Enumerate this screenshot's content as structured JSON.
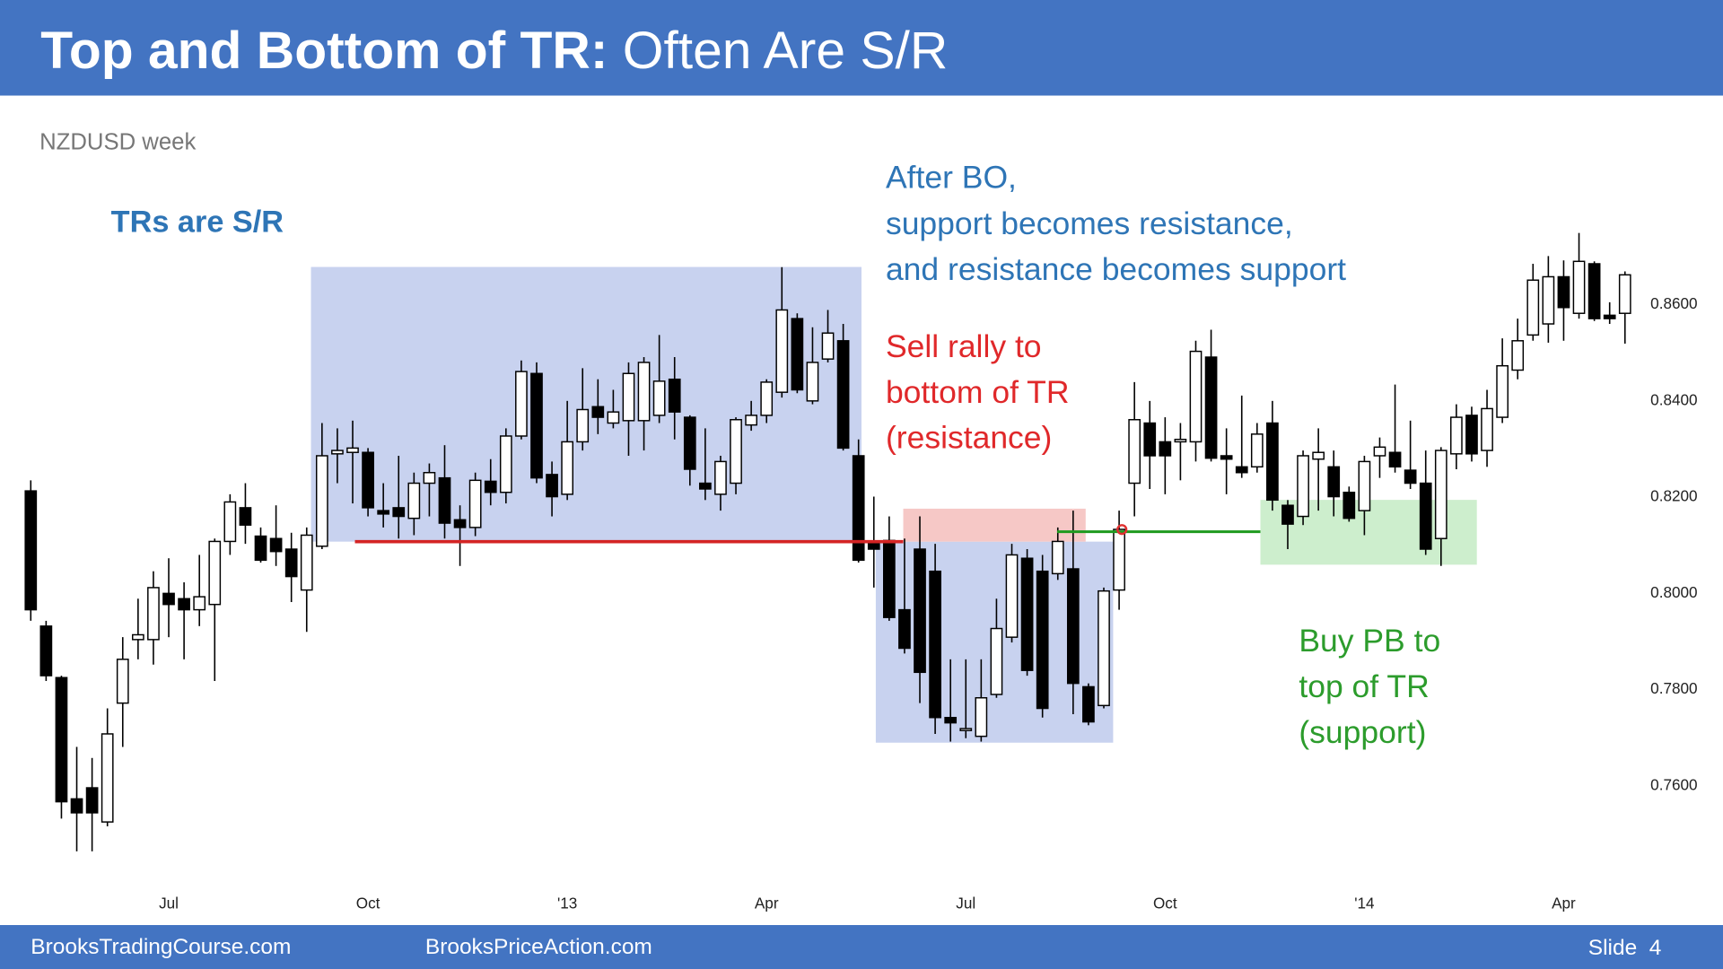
{
  "slide": {
    "title_bold": "Top and Bottom of TR:",
    "title_rest": "Often Are S/R",
    "footer_left": "BrooksTradingCourse.com",
    "footer_mid": "BrooksPriceAction.com",
    "footer_right": "Slide  4"
  },
  "chart_data": {
    "type": "candlestick",
    "title": "NZDUSD week",
    "categories": [
      null,
      null,
      null,
      null,
      null,
      null,
      null,
      null,
      null,
      "Jul",
      null,
      null,
      null,
      null,
      null,
      null,
      null,
      null,
      null,
      null,
      null,
      null,
      "Oct",
      null,
      null,
      null,
      null,
      null,
      null,
      null,
      null,
      null,
      null,
      null,
      null,
      "'13",
      null,
      null,
      null,
      null,
      null,
      null,
      null,
      null,
      null,
      null,
      null,
      null,
      "Apr",
      null,
      null,
      null,
      null,
      null,
      null,
      null,
      null,
      null,
      null,
      null,
      null,
      "Jul",
      null,
      null,
      null,
      null,
      null,
      null,
      null,
      null,
      null,
      null,
      null,
      null,
      "Oct",
      null,
      null,
      null,
      null,
      null,
      null,
      null,
      null,
      null,
      null,
      null,
      null,
      "'14",
      null,
      null,
      null,
      null,
      null,
      null,
      null,
      null,
      null,
      null,
      null,
      null,
      "Apr",
      null,
      null,
      null,
      null
    ],
    "open": [
      0.821,
      0.7929,
      0.7822,
      0.757,
      0.7593,
      0.7522,
      0.7769,
      0.7901,
      0.7901,
      0.7997,
      0.7986,
      0.7963,
      0.7974,
      0.8105,
      0.8175,
      0.8116,
      0.8111,
      0.8089,
      0.8004,
      0.8095,
      0.8287,
      0.829,
      0.829,
      0.8169,
      0.8175,
      0.8153,
      0.8226,
      0.8237,
      0.815,
      0.8134,
      0.823,
      0.8207,
      0.8324,
      0.8454,
      0.8244,
      0.8203,
      0.8312,
      0.8385,
      0.8351,
      0.8356,
      0.8356,
      0.8367,
      0.8442,
      0.8363,
      0.8226,
      0.8203,
      0.8226,
      0.8347,
      0.8367,
      0.8415,
      0.8568,
      0.8397,
      0.8484,
      0.8522,
      0.8283,
      0.81,
      0.8107,
      0.7963,
      0.8089,
      0.8043,
      0.7739,
      0.7712,
      0.77,
      0.7787,
      0.7906,
      0.807,
      0.8043,
      0.8038,
      0.8048,
      0.7803,
      0.7764,
      0.8004,
      0.8226,
      0.8351,
      0.8312,
      0.8312,
      0.8312,
      0.8488,
      0.8283,
      0.826,
      0.826,
      0.8351,
      0.818,
      0.8157,
      0.8276,
      0.826,
      0.8207,
      0.8169,
      0.8283,
      0.829,
      0.8253,
      0.8226,
      0.8111,
      0.8287,
      0.8367,
      0.8294,
      0.8363,
      0.8461,
      0.8534,
      0.8557,
      0.8655,
      0.8579,
      0.8682,
      0.8575,
      0.8579
    ],
    "high": [
      0.8232,
      0.794,
      0.7826,
      0.7678,
      0.7655,
      0.7758,
      0.7906,
      0.7986,
      0.8043,
      0.807,
      0.802,
      0.8077,
      0.8111,
      0.8203,
      0.8226,
      0.8134,
      0.818,
      0.8123,
      0.8134,
      0.8351,
      0.834,
      0.8356,
      0.8299,
      0.8226,
      0.8283,
      0.8248,
      0.8267,
      0.8305,
      0.818,
      0.8248,
      0.8276,
      0.834,
      0.8481,
      0.8477,
      0.8271,
      0.8397,
      0.8465,
      0.8442,
      0.842,
      0.8477,
      0.8488,
      0.8534,
      0.8488,
      0.8367,
      0.834,
      0.8283,
      0.8363,
      0.8397,
      0.8442,
      0.8675,
      0.8579,
      0.855,
      0.8586,
      0.8557,
      0.8317,
      0.8198,
      0.8157,
      0.8111,
      0.8157,
      0.81,
      0.786,
      0.786,
      0.786,
      0.7986,
      0.81,
      0.8089,
      0.8077,
      0.8134,
      0.8169,
      0.781,
      0.8009,
      0.8169,
      0.8436,
      0.8397,
      0.8363,
      0.8351,
      0.8522,
      0.8545,
      0.834,
      0.8408,
      0.8351,
      0.8397,
      0.8191,
      0.8294,
      0.834,
      0.8294,
      0.8219,
      0.8283,
      0.8321,
      0.8431,
      0.8356,
      0.8294,
      0.8301,
      0.839,
      0.8385,
      0.842,
      0.8527,
      0.8568,
      0.8682,
      0.8698,
      0.8689,
      0.8746,
      0.8687,
      0.8602,
      0.8666
    ],
    "low": [
      0.794,
      0.7815,
      0.7529,
      0.7461,
      0.7461,
      0.7513,
      0.7678,
      0.786,
      0.7849,
      0.7906,
      0.786,
      0.7929,
      0.7815,
      0.8077,
      0.81,
      0.8061,
      0.8054,
      0.7979,
      0.7917,
      0.8089,
      0.8226,
      0.8184,
      0.8157,
      0.8134,
      0.8111,
      0.8118,
      0.8157,
      0.8111,
      0.8054,
      0.8116,
      0.818,
      0.8184,
      0.8317,
      0.8226,
      0.8157,
      0.8191,
      0.8294,
      0.8328,
      0.834,
      0.8283,
      0.8294,
      0.8351,
      0.8317,
      0.8221,
      0.8191,
      0.8169,
      0.8203,
      0.8335,
      0.8351,
      0.8404,
      0.8413,
      0.839,
      0.8477,
      0.8294,
      0.8061,
      0.8009,
      0.794,
      0.7872,
      0.7769,
      0.7705,
      0.7689,
      0.7696,
      0.7689,
      0.778,
      0.7895,
      0.7826,
      0.7739,
      0.8025,
      0.7746,
      0.7723,
      0.7758,
      0.7963,
      0.8157,
      0.8214,
      0.8203,
      0.8232,
      0.8271,
      0.8271,
      0.8203,
      0.8237,
      0.8248,
      0.8169,
      0.8089,
      0.8139,
      0.8169,
      0.8157,
      0.8146,
      0.8118,
      0.8237,
      0.8248,
      0.8214,
      0.8077,
      0.8054,
      0.8255,
      0.8271,
      0.826,
      0.8351,
      0.8442,
      0.8522,
      0.8518,
      0.8522,
      0.8568,
      0.8563,
      0.8557,
      0.8516
    ],
    "close": [
      0.7963,
      0.7826,
      0.7564,
      0.7541,
      0.7541,
      0.7705,
      0.786,
      0.7911,
      0.8009,
      0.7974,
      0.7963,
      0.799,
      0.8105,
      0.8187,
      0.8139,
      0.8066,
      0.8084,
      0.8032,
      0.8118,
      0.8283,
      0.8294,
      0.8299,
      0.8175,
      0.8162,
      0.8157,
      0.8226,
      0.8248,
      0.8143,
      0.8134,
      0.8232,
      0.8207,
      0.8324,
      0.8458,
      0.8237,
      0.8198,
      0.8312,
      0.8379,
      0.8363,
      0.8374,
      0.8454,
      0.8477,
      0.8438,
      0.8374,
      0.8255,
      0.8214,
      0.8271,
      0.8358,
      0.8367,
      0.8436,
      0.8586,
      0.842,
      0.8477,
      0.8538,
      0.8299,
      0.8066,
      0.8089,
      0.7947,
      0.7883,
      0.7833,
      0.7739,
      0.7728,
      0.7716,
      0.778,
      0.7924,
      0.8077,
      0.7837,
      0.7758,
      0.8105,
      0.781,
      0.773,
      0.8002,
      0.813,
      0.8358,
      0.8283,
      0.8283,
      0.8317,
      0.85,
      0.8278,
      0.8276,
      0.8248,
      0.8328,
      0.8191,
      0.8141,
      0.8283,
      0.829,
      0.8198,
      0.8153,
      0.8271,
      0.8301,
      0.826,
      0.8226,
      0.8089,
      0.8294,
      0.8363,
      0.8287,
      0.8381,
      0.847,
      0.8522,
      0.8648,
      0.8655,
      0.8591,
      0.8687,
      0.8568,
      0.8568,
      0.8659
    ],
    "up_color": "#ffffff",
    "down_color": "#000000",
    "ylim": [
      0.745,
      0.875
    ],
    "yticks": [
      {
        "value": 0.76,
        "label": "0.7600"
      },
      {
        "value": 0.78,
        "label": "0.7800"
      },
      {
        "value": 0.8,
        "label": "0.8000"
      },
      {
        "value": 0.82,
        "label": "0.8200"
      },
      {
        "value": 0.84,
        "label": "0.8400"
      },
      {
        "value": 0.86,
        "label": "0.8600"
      }
    ],
    "annotations": [
      {
        "lines": [
          "TRs are S/R"
        ],
        "color": "#2e75b6"
      },
      {
        "lines": [
          "After BO,",
          "support becomes resistance,",
          "and resistance becomes support"
        ],
        "color": "#2e75b6"
      },
      {
        "lines": [
          "Sell rally to",
          "bottom of TR",
          "(resistance)"
        ],
        "color": "#e0282a"
      },
      {
        "lines": [
          "Buy PB to",
          "top of TR",
          "(support)"
        ],
        "color": "#2c9c2c"
      }
    ]
  }
}
